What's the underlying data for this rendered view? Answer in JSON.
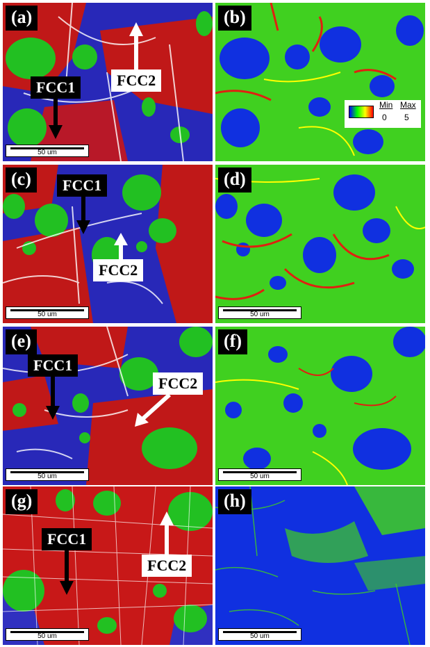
{
  "panels": [
    {
      "label": "(a)",
      "scale": "50 um",
      "type": "phase"
    },
    {
      "label": "(b)",
      "scale": "",
      "type": "kam"
    },
    {
      "label": "(c)",
      "scale": "50 um",
      "type": "phase"
    },
    {
      "label": "(d)",
      "scale": "50 um",
      "type": "kam"
    },
    {
      "label": "(e)",
      "scale": "50 um",
      "type": "phase"
    },
    {
      "label": "(f)",
      "scale": "50 um",
      "type": "kam"
    },
    {
      "label": "(g)",
      "scale": "50 um",
      "type": "phase"
    },
    {
      "label": "(h)",
      "scale": "50 um",
      "type": "kam"
    }
  ],
  "annotations": {
    "fcc1": "FCC1",
    "fcc2": "FCC2"
  },
  "legend": {
    "min_label": "Min",
    "max_label": "Max",
    "min_value": "0",
    "max_value": "5",
    "colors": [
      "#0000ff",
      "#00ff00",
      "#ffff00",
      "#ff0000"
    ]
  },
  "colors": {
    "fcc1_phase": "#cc1010",
    "fcc2_phase": "#2020c0",
    "bcc_phase": "#20c020",
    "kam_low": "#1030e0",
    "kam_mid": "#40d020",
    "kam_high": "#e02010"
  }
}
